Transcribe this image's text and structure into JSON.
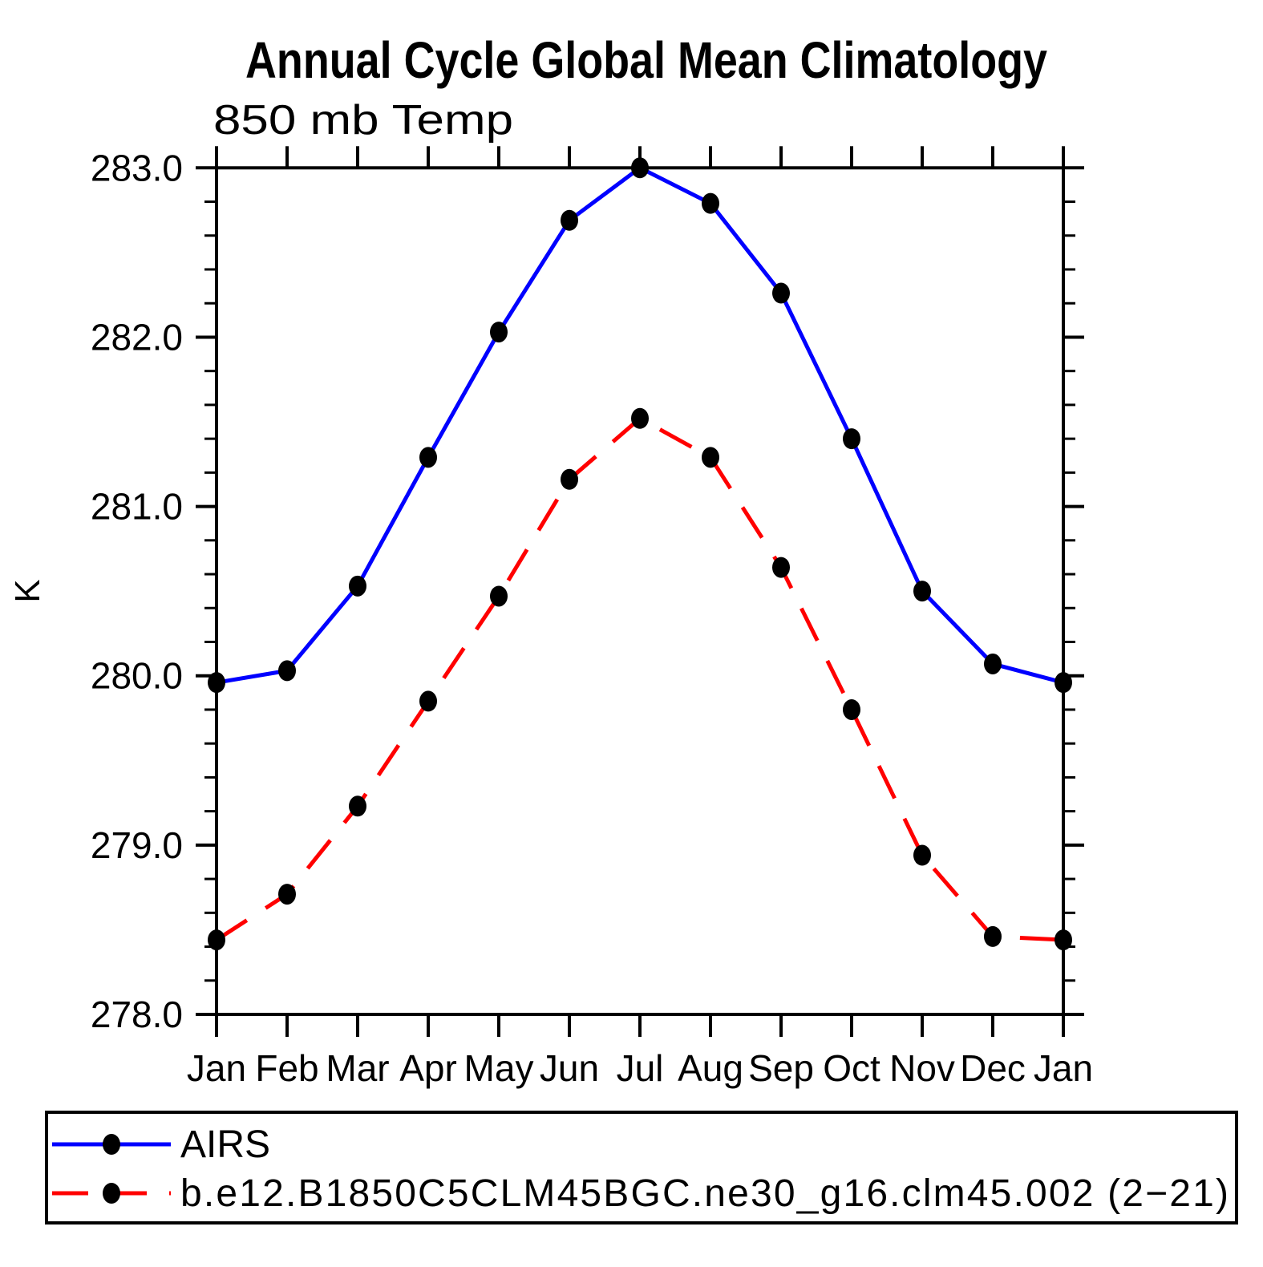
{
  "title": "Annual Cycle Global Mean Climatology",
  "subtitle": "850 mb Temp",
  "y_axis_unit": "K",
  "colors": {
    "axis": "#000000",
    "background": "#ffffff",
    "airs_line": "#0000ff",
    "model_line": "#ff0000",
    "marker": "#000000"
  },
  "chart_data": {
    "type": "line",
    "title": "Annual Cycle Global Mean Climatology",
    "subtitle": "850 mb Temp",
    "xlabel": "",
    "ylabel": "K",
    "categories": [
      "Jan",
      "Feb",
      "Mar",
      "Apr",
      "May",
      "Jun",
      "Jul",
      "Aug",
      "Sep",
      "Oct",
      "Nov",
      "Dec",
      "Jan"
    ],
    "ylim": [
      278.0,
      283.0
    ],
    "ytick_labels": [
      "283.0",
      "282.0",
      "281.0",
      "280.0",
      "279.0",
      "278.0"
    ],
    "ytick_interval": 1.0,
    "yminor_interval": 0.2,
    "grid": false,
    "legend_position": "bottom-box",
    "series": [
      {
        "name": "AIRS",
        "color": "#0000ff",
        "line_style": "solid",
        "marker": "filled-ellipse",
        "marker_color": "#000000",
        "values": [
          279.96,
          280.03,
          280.53,
          281.29,
          282.03,
          282.69,
          283.0,
          282.79,
          282.26,
          281.4,
          280.5,
          280.07,
          279.96
        ]
      },
      {
        "name": "b.e12.B1850C5CLM45BGC.ne30_g16.clm45.002 (2−21)",
        "color": "#ff0000",
        "line_style": "dashed",
        "marker": "filled-ellipse",
        "marker_color": "#000000",
        "values": [
          278.44,
          278.71,
          279.23,
          279.85,
          280.47,
          281.16,
          281.52,
          281.29,
          280.64,
          279.8,
          278.94,
          278.46,
          278.44
        ]
      }
    ]
  }
}
